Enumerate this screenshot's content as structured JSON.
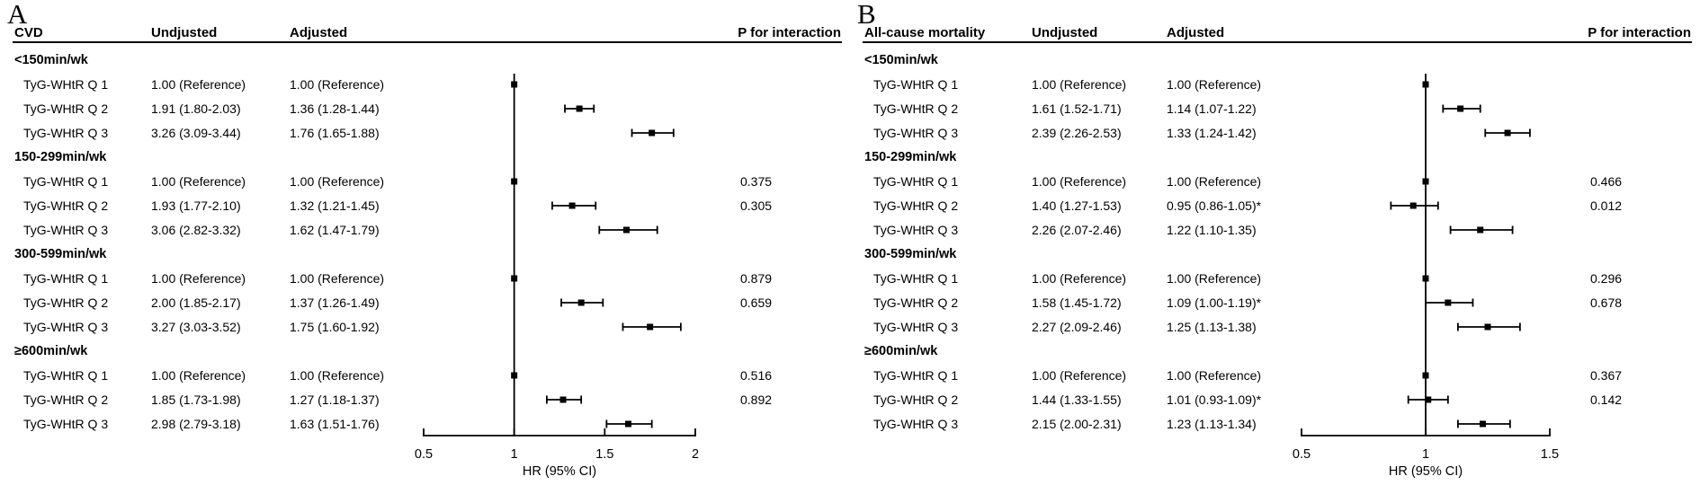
{
  "chart_data": [
    {
      "type": "forest",
      "panel_letter": "A",
      "outcome": "CVD",
      "col_headers": {
        "undjusted": "Undjusted",
        "adjusted": "Adjusted",
        "p_interaction": "P for interaction"
      },
      "xlabel": "HR (95% CI)",
      "xlim": [
        0.5,
        2
      ],
      "xticks": [
        "0.5",
        "1",
        "1.5",
        "2"
      ],
      "ref_line": 1,
      "groups": [
        {
          "label": "<150min/wk",
          "rows": [
            {
              "label": "TyG-WHtR Q 1",
              "undjusted": "1.00 (Reference)",
              "adjusted": "1.00 (Reference)",
              "est": 1.0,
              "ci": null,
              "p": null
            },
            {
              "label": "TyG-WHtR Q 2",
              "undjusted": "1.91 (1.80-2.03)",
              "adjusted": "1.36 (1.28-1.44)",
              "est": 1.36,
              "ci": [
                1.28,
                1.44
              ],
              "p": null
            },
            {
              "label": "TyG-WHtR Q 3",
              "undjusted": "3.26 (3.09-3.44)",
              "adjusted": "1.76 (1.65-1.88)",
              "est": 1.76,
              "ci": [
                1.65,
                1.88
              ],
              "p": null
            }
          ]
        },
        {
          "label": "150-299min/wk",
          "rows": [
            {
              "label": "TyG-WHtR Q 1",
              "undjusted": "1.00 (Reference)",
              "adjusted": "1.00 (Reference)",
              "est": 1.0,
              "ci": null,
              "p": "0.375"
            },
            {
              "label": "TyG-WHtR Q 2",
              "undjusted": "1.93 (1.77-2.10)",
              "adjusted": "1.32 (1.21-1.45)",
              "est": 1.32,
              "ci": [
                1.21,
                1.45
              ],
              "p": "0.305"
            },
            {
              "label": "TyG-WHtR Q 3",
              "undjusted": "3.06 (2.82-3.32)",
              "adjusted": "1.62 (1.47-1.79)",
              "est": 1.62,
              "ci": [
                1.47,
                1.79
              ],
              "p": null
            }
          ]
        },
        {
          "label": "300-599min/wk",
          "rows": [
            {
              "label": "TyG-WHtR Q 1",
              "undjusted": "1.00 (Reference)",
              "adjusted": "1.00 (Reference)",
              "est": 1.0,
              "ci": null,
              "p": "0.879"
            },
            {
              "label": "TyG-WHtR Q 2",
              "undjusted": "2.00 (1.85-2.17)",
              "adjusted": "1.37 (1.26-1.49)",
              "est": 1.37,
              "ci": [
                1.26,
                1.49
              ],
              "p": "0.659"
            },
            {
              "label": "TyG-WHtR Q 3",
              "undjusted": "3.27 (3.03-3.52)",
              "adjusted": "1.75 (1.60-1.92)",
              "est": 1.75,
              "ci": [
                1.6,
                1.92
              ],
              "p": null
            }
          ]
        },
        {
          "label": "≥600min/wk",
          "rows": [
            {
              "label": "TyG-WHtR Q 1",
              "undjusted": "1.00 (Reference)",
              "adjusted": "1.00 (Reference)",
              "est": 1.0,
              "ci": null,
              "p": "0.516"
            },
            {
              "label": "TyG-WHtR Q 2",
              "undjusted": "1.85 (1.73-1.98)",
              "adjusted": "1.27 (1.18-1.37)",
              "est": 1.27,
              "ci": [
                1.18,
                1.37
              ],
              "p": "0.892"
            },
            {
              "label": "TyG-WHtR Q 3",
              "undjusted": "2.98 (2.79-3.18)",
              "adjusted": "1.63 (1.51-1.76)",
              "est": 1.63,
              "ci": [
                1.51,
                1.76
              ],
              "p": null
            }
          ]
        }
      ]
    },
    {
      "type": "forest",
      "panel_letter": "B",
      "outcome": "All-cause mortality",
      "col_headers": {
        "undjusted": "Undjusted",
        "adjusted": "Adjusted",
        "p_interaction": "P for interaction"
      },
      "xlabel": "HR (95% CI)",
      "xlim": [
        0.5,
        1.5
      ],
      "xticks": [
        "0.5",
        "1",
        "1.5"
      ],
      "ref_line": 1,
      "groups": [
        {
          "label": "<150min/wk",
          "rows": [
            {
              "label": "TyG-WHtR Q 1",
              "undjusted": "1.00 (Reference)",
              "adjusted": "1.00 (Reference)",
              "est": 1.0,
              "ci": null,
              "p": null
            },
            {
              "label": "TyG-WHtR Q 2",
              "undjusted": "1.61 (1.52-1.71)",
              "adjusted": "1.14 (1.07-1.22)",
              "est": 1.14,
              "ci": [
                1.07,
                1.22
              ],
              "p": null
            },
            {
              "label": "TyG-WHtR Q 3",
              "undjusted": "2.39 (2.26-2.53)",
              "adjusted": "1.33 (1.24-1.42)",
              "est": 1.33,
              "ci": [
                1.24,
                1.42
              ],
              "p": null
            }
          ]
        },
        {
          "label": "150-299min/wk",
          "rows": [
            {
              "label": "TyG-WHtR Q 1",
              "undjusted": "1.00 (Reference)",
              "adjusted": "1.00 (Reference)",
              "est": 1.0,
              "ci": null,
              "p": "0.466"
            },
            {
              "label": "TyG-WHtR Q 2",
              "undjusted": "1.40 (1.27-1.53)",
              "adjusted": "0.95 (0.86-1.05)*",
              "est": 0.95,
              "ci": [
                0.86,
                1.05
              ],
              "p": "0.012"
            },
            {
              "label": "TyG-WHtR Q 3",
              "undjusted": "2.26 (2.07-2.46)",
              "adjusted": "1.22 (1.10-1.35)",
              "est": 1.22,
              "ci": [
                1.1,
                1.35
              ],
              "p": null
            }
          ]
        },
        {
          "label": "300-599min/wk",
          "rows": [
            {
              "label": "TyG-WHtR Q 1",
              "undjusted": "1.00 (Reference)",
              "adjusted": "1.00 (Reference)",
              "est": 1.0,
              "ci": null,
              "p": "0.296"
            },
            {
              "label": "TyG-WHtR Q 2",
              "undjusted": "1.58 (1.45-1.72)",
              "adjusted": "1.09 (1.00-1.19)*",
              "est": 1.09,
              "ci": [
                1.0,
                1.19
              ],
              "p": "0.678"
            },
            {
              "label": "TyG-WHtR Q 3",
              "undjusted": "2.27 (2.09-2.46)",
              "adjusted": "1.25 (1.13-1.38)",
              "est": 1.25,
              "ci": [
                1.13,
                1.38
              ],
              "p": null
            }
          ]
        },
        {
          "label": "≥600min/wk",
          "rows": [
            {
              "label": "TyG-WHtR Q 1",
              "undjusted": "1.00 (Reference)",
              "adjusted": "1.00 (Reference)",
              "est": 1.0,
              "ci": null,
              "p": "0.367"
            },
            {
              "label": "TyG-WHtR Q 2",
              "undjusted": "1.44 (1.33-1.55)",
              "adjusted": "1.01 (0.93-1.09)*",
              "est": 1.01,
              "ci": [
                0.93,
                1.09
              ],
              "p": "0.142"
            },
            {
              "label": "TyG-WHtR Q 3",
              "undjusted": "2.15 (2.00-2.31)",
              "adjusted": "1.23 (1.13-1.34)",
              "est": 1.23,
              "ci": [
                1.13,
                1.34
              ],
              "p": null
            }
          ]
        }
      ]
    }
  ]
}
